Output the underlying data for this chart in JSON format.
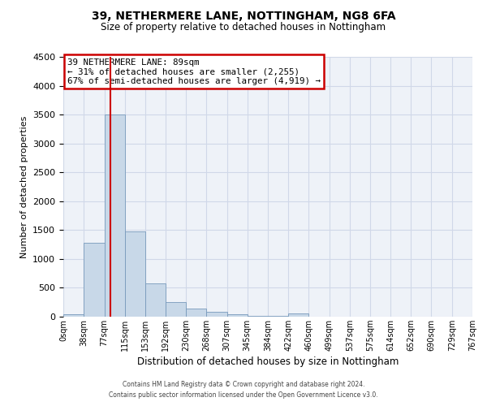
{
  "title": "39, NETHERMERE LANE, NOTTINGHAM, NG8 6FA",
  "subtitle": "Size of property relative to detached houses in Nottingham",
  "xlabel": "Distribution of detached houses by size in Nottingham",
  "ylabel": "Number of detached properties",
  "bar_color": "#c8d8e8",
  "bar_edge_color": "#7799bb",
  "bin_edges": [
    0,
    38,
    77,
    115,
    153,
    192,
    230,
    268,
    307,
    345,
    384,
    422,
    460,
    499,
    537,
    575,
    614,
    652,
    690,
    729,
    767
  ],
  "bin_labels": [
    "0sqm",
    "38sqm",
    "77sqm",
    "115sqm",
    "153sqm",
    "192sqm",
    "230sqm",
    "268sqm",
    "307sqm",
    "345sqm",
    "384sqm",
    "422sqm",
    "460sqm",
    "499sqm",
    "537sqm",
    "575sqm",
    "614sqm",
    "652sqm",
    "690sqm",
    "729sqm",
    "767sqm"
  ],
  "bar_heights": [
    40,
    1280,
    3500,
    1480,
    580,
    255,
    145,
    90,
    45,
    20,
    10,
    55,
    0,
    0,
    0,
    0,
    0,
    0,
    0,
    0
  ],
  "ylim": [
    0,
    4500
  ],
  "yticks": [
    0,
    500,
    1000,
    1500,
    2000,
    2500,
    3000,
    3500,
    4000,
    4500
  ],
  "vline_x": 89,
  "vline_color": "#cc0000",
  "annotation_title": "39 NETHERMERE LANE: 89sqm",
  "annotation_line1": "← 31% of detached houses are smaller (2,255)",
  "annotation_line2": "67% of semi-detached houses are larger (4,919) →",
  "annotation_box_color": "#ffffff",
  "annotation_box_edge": "#cc0000",
  "grid_color": "#d0d8e8",
  "bg_color": "#eef2f8",
  "footer1": "Contains HM Land Registry data © Crown copyright and database right 2024.",
  "footer2": "Contains public sector information licensed under the Open Government Licence v3.0."
}
